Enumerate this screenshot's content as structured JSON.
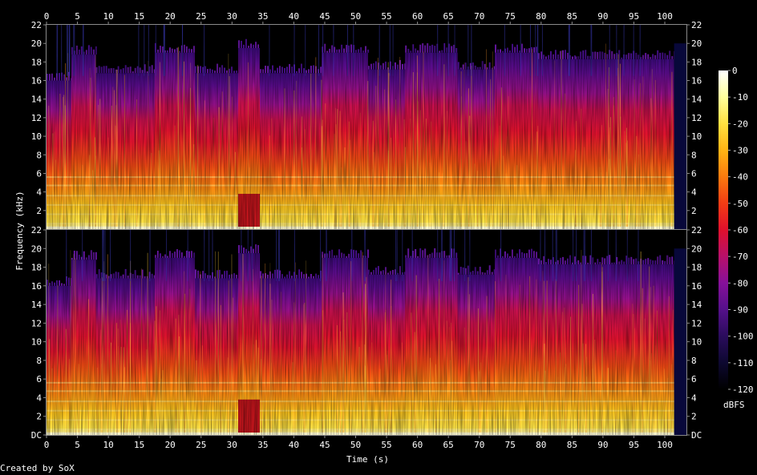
{
  "chart_data": {
    "type": "heatmap",
    "title": "",
    "xlabel": "Time (s)",
    "ylabel": "Frequency (kHz)",
    "x_ticks": [
      0,
      5,
      10,
      15,
      20,
      25,
      30,
      35,
      40,
      45,
      50,
      55,
      60,
      65,
      70,
      75,
      80,
      85,
      90,
      95,
      100
    ],
    "xlim": [
      0,
      103.5
    ],
    "channels": [
      {
        "y_ticks": [
          "2",
          "4",
          "6",
          "8",
          "10",
          "12",
          "14",
          "16",
          "18",
          "20",
          "22"
        ],
        "ylim": [
          0,
          22
        ]
      },
      {
        "y_ticks": [
          "DC",
          "2",
          "4",
          "6",
          "8",
          "10",
          "12",
          "14",
          "16",
          "18",
          "20",
          "22"
        ],
        "ylim": [
          0,
          22
        ]
      }
    ],
    "colorbar": {
      "label": "dBFS",
      "ticks": [
        0,
        -10,
        -20,
        -30,
        -40,
        -50,
        -60,
        -70,
        -80,
        -90,
        -100,
        -110,
        -120
      ],
      "range": [
        -120,
        0
      ],
      "palette": [
        "#000000",
        "#0d0830",
        "#2a0c5c",
        "#55108a",
        "#86109a",
        "#b8106a",
        "#e0102c",
        "#f23c14",
        "#fb7a0e",
        "#ffb414",
        "#ffe040",
        "#ffff9c",
        "#ffffff"
      ]
    },
    "spectral_envelope": {
      "cutoff_khz_by_segment": [
        {
          "t": [
            0,
            4
          ],
          "khz": 16.0
        },
        {
          "t": [
            4,
            8
          ],
          "khz": 18.8
        },
        {
          "t": [
            8,
            17.5
          ],
          "khz": 16.8
        },
        {
          "t": [
            17.5,
            24
          ],
          "khz": 19.0
        },
        {
          "t": [
            24,
            31
          ],
          "khz": 16.8
        },
        {
          "t": [
            31,
            34.5
          ],
          "khz": 19.5
        },
        {
          "t": [
            34.5,
            44.5
          ],
          "khz": 16.8
        },
        {
          "t": [
            44.5,
            52
          ],
          "khz": 19.0
        },
        {
          "t": [
            52,
            58
          ],
          "khz": 17.2
        },
        {
          "t": [
            58,
            66.5
          ],
          "khz": 19.0
        },
        {
          "t": [
            66.5,
            72.5
          ],
          "khz": 17.2
        },
        {
          "t": [
            72.5,
            79.5
          ],
          "khz": 19.0
        },
        {
          "t": [
            79.5,
            85.5
          ],
          "khz": 18.3
        },
        {
          "t": [
            85.5,
            101.5
          ],
          "khz": 18.3
        },
        {
          "t": [
            101.5,
            103.5
          ],
          "khz": 20.0
        }
      ],
      "silence_from_s": 101.5,
      "transient_burst_s": [
        31,
        34.5
      ]
    }
  },
  "footer": {
    "credit": "Created by SoX"
  }
}
